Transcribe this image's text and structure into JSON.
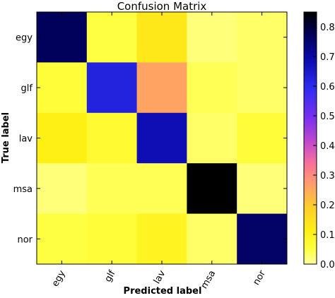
{
  "chart_data": {
    "type": "heatmap",
    "title": "Confusion Matrix",
    "xlabel": "Predicted label",
    "ylabel": "True label",
    "x_categories": [
      "egy",
      "glf",
      "lav",
      "msa",
      "nor"
    ],
    "y_categories": [
      "egy",
      "glf",
      "lav",
      "msa",
      "nor"
    ],
    "values": [
      [
        0.77,
        0.05,
        0.13,
        0.02,
        0.03
      ],
      [
        0.06,
        0.62,
        0.26,
        0.04,
        0.03
      ],
      [
        0.11,
        0.07,
        0.68,
        0.03,
        0.06
      ],
      [
        0.02,
        0.04,
        0.04,
        0.87,
        0.02
      ],
      [
        0.05,
        0.06,
        0.09,
        0.03,
        0.76
      ]
    ],
    "colorbar": {
      "range": [
        0.0,
        0.85
      ],
      "ticks": [
        "0.0",
        "0.1",
        "0.2",
        "0.3",
        "0.4",
        "0.5",
        "0.6",
        "0.7",
        "0.8"
      ],
      "colormap": "gnuplot2_r"
    }
  }
}
